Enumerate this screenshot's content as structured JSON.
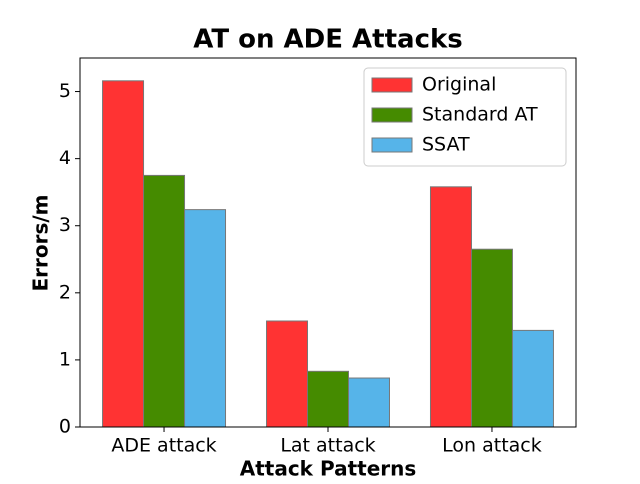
{
  "chart_data": {
    "type": "bar",
    "title": "AT on ADE Attacks",
    "x_label": "Attack Patterns",
    "y_label": "Errors/m",
    "categories": [
      "ADE attack",
      "Lat attack",
      "Lon attack"
    ],
    "series": [
      {
        "name": "Original",
        "color": "#ff3333",
        "values": [
          5.16,
          1.58,
          3.58
        ]
      },
      {
        "name": "Standard AT",
        "color": "#458b00",
        "values": [
          3.75,
          0.83,
          2.65
        ]
      },
      {
        "name": "SSAT",
        "color": "#56b4e9",
        "values": [
          3.24,
          0.73,
          1.44
        ]
      }
    ],
    "ylim": [
      0,
      5.5
    ],
    "yticks": [
      0,
      1,
      2,
      3,
      4,
      5
    ],
    "grid": false,
    "legend": "upper right"
  }
}
